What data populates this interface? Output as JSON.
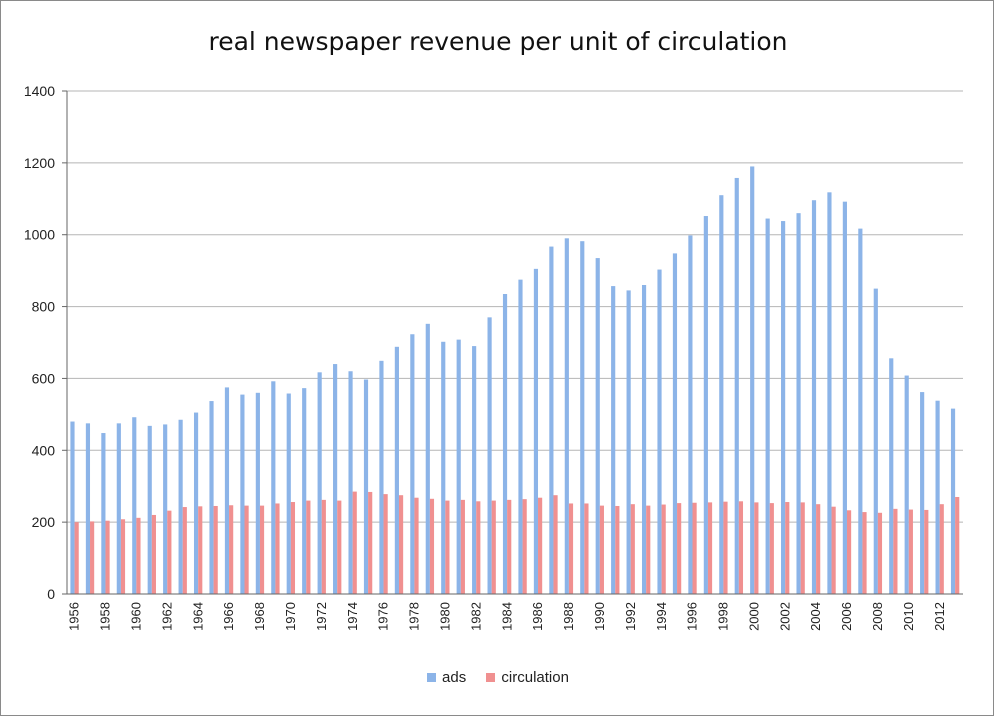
{
  "chart_data": {
    "type": "bar",
    "title": "real newspaper revenue per unit of circulation",
    "xlabel": "",
    "ylabel": "",
    "ylim": [
      0,
      1400
    ],
    "yticks": [
      "0",
      "200",
      "400",
      "600",
      "800",
      "1000",
      "1200",
      "1400"
    ],
    "grid": true,
    "legend_position": "bottom",
    "categories": [
      "1956",
      "1957",
      "1958",
      "1959",
      "1960",
      "1961",
      "1962",
      "1963",
      "1964",
      "1965",
      "1966",
      "1967",
      "1968",
      "1969",
      "1970",
      "1971",
      "1972",
      "1973",
      "1974",
      "1975",
      "1976",
      "1977",
      "1978",
      "1979",
      "1980",
      "1981",
      "1982",
      "1983",
      "1984",
      "1985",
      "1986",
      "1987",
      "1988",
      "1989",
      "1990",
      "1991",
      "1992",
      "1993",
      "1994",
      "1995",
      "1996",
      "1997",
      "1998",
      "1999",
      "2000",
      "2001",
      "2002",
      "2003",
      "2004",
      "2005",
      "2006",
      "2007",
      "2008",
      "2009",
      "2010",
      "2011",
      "2012",
      "2013"
    ],
    "tick_labels": [
      "1956",
      "",
      "1958",
      "",
      "1960",
      "",
      "1962",
      "",
      "1964",
      "",
      "1966",
      "",
      "1968",
      "",
      "1970",
      "",
      "1972",
      "",
      "1974",
      "",
      "1976",
      "",
      "1978",
      "",
      "1980",
      "",
      "1982",
      "",
      "1984",
      "",
      "1986",
      "",
      "1988",
      "",
      "1990",
      "",
      "1992",
      "",
      "1994",
      "",
      "1996",
      "",
      "1998",
      "",
      "2000",
      "",
      "2002",
      "",
      "2004",
      "",
      "2006",
      "",
      "2008",
      "",
      "2010",
      "",
      "2012",
      ""
    ],
    "series": [
      {
        "name": "ads",
        "color": "#8cb4e8",
        "values": [
          480,
          475,
          448,
          475,
          492,
          468,
          472,
          485,
          505,
          537,
          575,
          555,
          560,
          592,
          558,
          573,
          617,
          640,
          620,
          597,
          649,
          688,
          723,
          752,
          702,
          708,
          690,
          770,
          835,
          875,
          905,
          967,
          990,
          982,
          935,
          857,
          845,
          860,
          903,
          948,
          998,
          1052,
          1110,
          1158,
          1190,
          1045,
          1038,
          1060,
          1096,
          1118,
          1092,
          1017,
          850,
          656,
          608,
          562,
          538,
          516
        ]
      },
      {
        "name": "circulation",
        "color": "#f09090",
        "values": [
          200,
          202,
          204,
          208,
          212,
          220,
          232,
          242,
          244,
          245,
          247,
          246,
          246,
          252,
          256,
          260,
          262,
          260,
          285,
          284,
          278,
          275,
          268,
          265,
          260,
          262,
          258,
          260,
          262,
          264,
          268,
          275,
          252,
          252,
          246,
          245,
          250,
          246,
          249,
          253,
          254,
          255,
          257,
          258,
          255,
          253,
          256,
          255,
          250,
          243,
          233,
          228,
          226,
          237,
          235,
          234,
          250,
          270
        ]
      }
    ]
  }
}
